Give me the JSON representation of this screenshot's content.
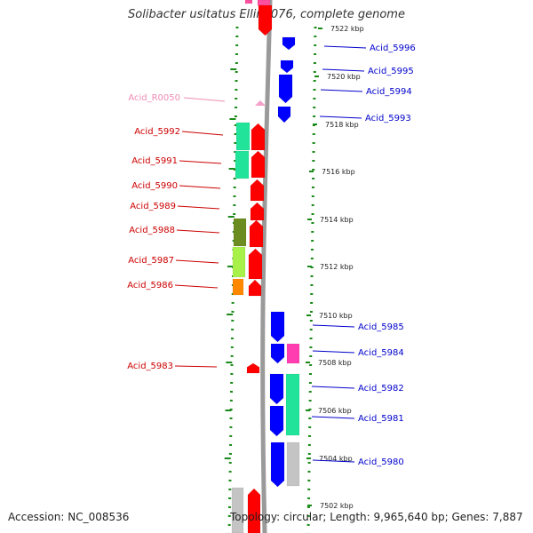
{
  "title": "Solibacter usitatus Ellin6076, complete genome",
  "accession": "Accession: NC_008536",
  "topology": "Topology: circular; Length: 9,965,640 bp; Genes: 7,887",
  "colors": {
    "minus_label": "#cc0000",
    "plus_label": "#0000cc",
    "rna_label": "#f08cb4",
    "gene_red": "#ff0000",
    "gene_blue": "#0000ff",
    "backbone": "#999999",
    "ticks": "#007a00"
  },
  "ticks": [
    "7522 kbp",
    "7520 kbp",
    "7518 kbp",
    "7516 kbp",
    "7514 kbp",
    "7512 kbp",
    "7510 kbp",
    "7508 kbp",
    "7506 kbp",
    "7504 kbp",
    "7502 kbp"
  ],
  "left_labels": [
    "Acid_R0050",
    "Acid_5992",
    "Acid_5991",
    "Acid_5990",
    "Acid_5989",
    "Acid_5988",
    "Acid_5987",
    "Acid_5986",
    "Acid_5983"
  ],
  "right_labels": [
    "Acid_5996",
    "Acid_5995",
    "Acid_5994",
    "Acid_5993",
    "Acid_5985",
    "Acid_5984",
    "Acid_5982",
    "Acid_5981",
    "Acid_5980"
  ]
}
